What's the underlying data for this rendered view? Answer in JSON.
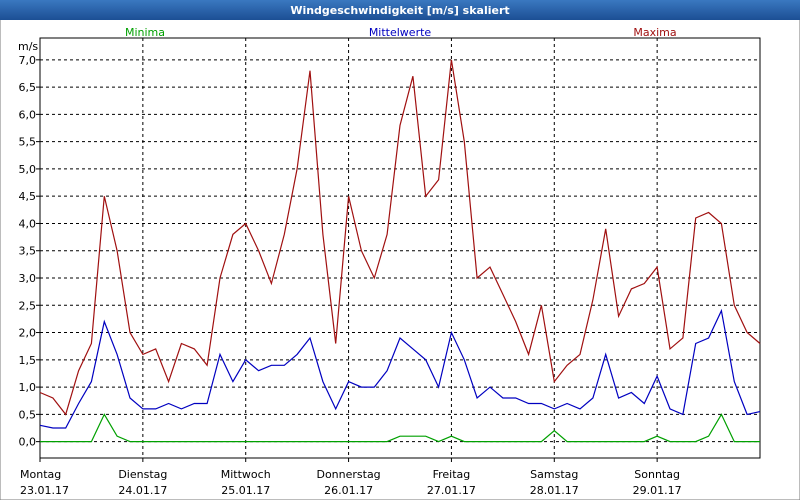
{
  "chart_data": {
    "type": "line",
    "title": "Windgeschwindigkeit [m/s] skaliert",
    "ylabel": "m/s",
    "x": [
      0,
      3,
      6,
      9,
      12,
      15,
      18,
      21,
      24,
      27,
      30,
      33,
      36,
      39,
      42,
      45,
      48,
      51,
      54,
      57,
      60,
      63,
      66,
      69,
      72,
      75,
      78,
      81,
      84,
      87,
      90,
      93,
      96,
      99,
      102,
      105,
      108,
      111,
      114,
      117,
      120,
      123,
      126,
      129,
      132,
      135,
      138,
      141,
      144,
      147,
      150,
      153,
      156,
      159,
      162,
      165,
      168
    ],
    "xlim": [
      0,
      168
    ],
    "xticks": [
      {
        "value": 0,
        "label": "Montag"
      },
      {
        "value": 24,
        "label": "Dienstag"
      },
      {
        "value": 48,
        "label": "Mittwoch"
      },
      {
        "value": 72,
        "label": "Donnerstag"
      },
      {
        "value": 96,
        "label": "Freitag"
      },
      {
        "value": 120,
        "label": "Samstag"
      },
      {
        "value": 144,
        "label": "Sonntag"
      }
    ],
    "xtick_dates": [
      "23.01.17",
      "24.01.17",
      "25.01.17",
      "26.01.17",
      "27.01.17",
      "28.01.17",
      "29.01.17"
    ],
    "ylim": [
      -0.3,
      7.4
    ],
    "yticks": [
      {
        "value": 0,
        "label": "0,0"
      },
      {
        "value": 0.5,
        "label": "0,5"
      },
      {
        "value": 1,
        "label": "1,0"
      },
      {
        "value": 1.5,
        "label": "1,5"
      },
      {
        "value": 2,
        "label": "2,0"
      },
      {
        "value": 2.5,
        "label": "2,5"
      },
      {
        "value": 3,
        "label": "3,0"
      },
      {
        "value": 3.5,
        "label": "3,5"
      },
      {
        "value": 4,
        "label": "4,0"
      },
      {
        "value": 4.5,
        "label": "4,5"
      },
      {
        "value": 5,
        "label": "5,0"
      },
      {
        "value": 5.5,
        "label": "5,5"
      },
      {
        "value": 6,
        "label": "6,0"
      },
      {
        "value": 6.5,
        "label": "6,5"
      },
      {
        "value": 7,
        "label": "7,0"
      }
    ],
    "grid": true,
    "series": [
      {
        "name": "Minima",
        "color": "#00a000",
        "values": [
          0,
          0,
          0,
          0,
          0,
          0.5,
          0.1,
          0,
          0,
          0,
          0,
          0,
          0,
          0,
          0,
          0,
          0,
          0,
          0,
          0,
          0,
          0,
          0,
          0,
          0,
          0,
          0,
          0,
          0.1,
          0.1,
          0.1,
          0,
          0.1,
          0,
          0,
          0,
          0,
          0,
          0,
          0,
          0.2,
          0,
          0,
          0,
          0,
          0,
          0,
          0,
          0.1,
          0,
          0,
          0,
          0.1,
          0.5,
          0,
          0,
          0
        ]
      },
      {
        "name": "Mittelwerte",
        "color": "#0000c0",
        "values": [
          0.3,
          0.25,
          0.25,
          0.7,
          1.1,
          2.2,
          1.6,
          0.8,
          0.6,
          0.6,
          0.7,
          0.6,
          0.7,
          0.7,
          1.6,
          1.1,
          1.5,
          1.3,
          1.4,
          1.4,
          1.6,
          1.9,
          1.1,
          0.6,
          1.1,
          1.0,
          1.0,
          1.3,
          1.9,
          1.7,
          1.5,
          1.0,
          2.0,
          1.5,
          0.8,
          1.0,
          0.8,
          0.8,
          0.7,
          0.7,
          0.6,
          0.7,
          0.6,
          0.8,
          1.6,
          0.8,
          0.9,
          0.7,
          1.2,
          0.6,
          0.5,
          1.8,
          1.9,
          2.4,
          1.1,
          0.5,
          0.55
        ]
      },
      {
        "name": "Maxima",
        "color": "#a01010",
        "values": [
          0.9,
          0.8,
          0.5,
          1.3,
          1.8,
          4.5,
          3.5,
          2.0,
          1.6,
          1.7,
          1.1,
          1.8,
          1.7,
          1.4,
          3.0,
          3.8,
          4.0,
          3.5,
          2.9,
          3.8,
          5.0,
          6.8,
          3.8,
          1.8,
          4.5,
          3.5,
          3.0,
          3.8,
          5.8,
          6.7,
          4.5,
          4.8,
          7.0,
          5.5,
          3.0,
          3.2,
          2.7,
          2.2,
          1.6,
          2.5,
          1.1,
          1.4,
          1.6,
          2.6,
          3.9,
          2.3,
          2.8,
          2.9,
          3.2,
          1.7,
          1.9,
          4.1,
          4.2,
          4.0,
          2.5,
          2.0,
          1.8
        ]
      }
    ]
  }
}
